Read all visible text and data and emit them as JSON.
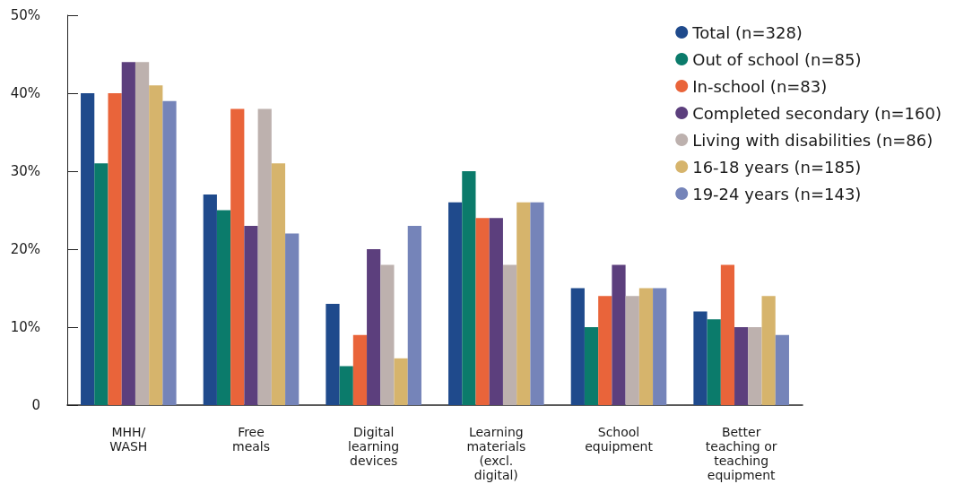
{
  "chart_data": {
    "type": "bar",
    "categories": [
      "MHH/\nWASH",
      "Free\nmeals",
      "Digital\nlearning\ndevices",
      "Learning\nmaterials\n(excl.\ndigital)",
      "School\nequipment",
      "Better\nteaching or\nteaching\nequipment"
    ],
    "series": [
      {
        "name": "Total (n=328)",
        "color": "#1f4a8c",
        "values": [
          40,
          27,
          13,
          26,
          15,
          12
        ]
      },
      {
        "name": "Out of school (n=85)",
        "color": "#0b7b6b",
        "values": [
          31,
          25,
          5,
          30,
          10,
          11
        ]
      },
      {
        "name": "In-school (n=83)",
        "color": "#e9643a",
        "values": [
          40,
          38,
          9,
          24,
          14,
          18
        ]
      },
      {
        "name": "Completed secondary (n=160)",
        "color": "#5c3f7d",
        "values": [
          44,
          23,
          20,
          24,
          18,
          10
        ]
      },
      {
        "name": "Living with disabilities (n=86)",
        "color": "#bdb1ae",
        "values": [
          44,
          38,
          18,
          18,
          14,
          10
        ]
      },
      {
        "name": "16-18 years (n=185)",
        "color": "#d6b46c",
        "values": [
          41,
          31,
          6,
          26,
          15,
          14
        ]
      },
      {
        "name": "19-24 years (n=143)",
        "color": "#7584b9",
        "values": [
          39,
          22,
          23,
          26,
          15,
          9
        ]
      }
    ],
    "ylim": [
      0,
      50
    ],
    "yticks": [
      {
        "value": 0,
        "label": "0"
      },
      {
        "value": 10,
        "label": "10%"
      },
      {
        "value": 20,
        "label": "20%"
      },
      {
        "value": 30,
        "label": "30%"
      },
      {
        "value": 40,
        "label": "40%"
      },
      {
        "value": 50,
        "label": "50%"
      }
    ],
    "grid": false,
    "legend": "top right"
  }
}
